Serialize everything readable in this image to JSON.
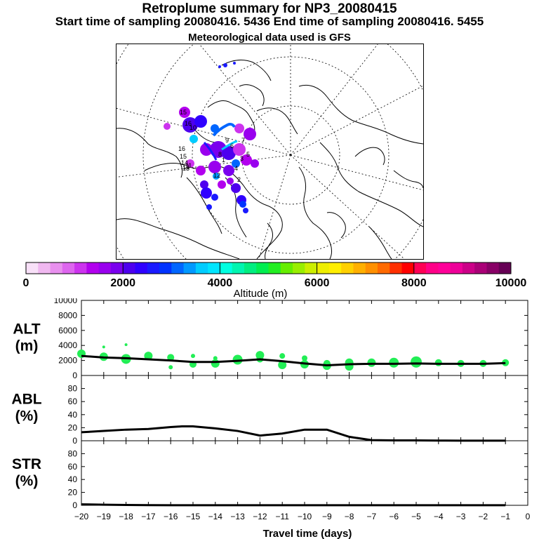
{
  "header": {
    "title": "Retroplume summary for NP3_20080415",
    "subtitle": "Start time of sampling 20080416.  5436     End time of sampling 20080416.  5455",
    "met_label": "Meteorological data used is GFS"
  },
  "colors": {
    "plume_dot": "#22ee55",
    "line": "#000000",
    "colorbar": [
      "#f8e0f8",
      "#f0b8f0",
      "#e890ee",
      "#dd66ee",
      "#cc33ee",
      "#b200ee",
      "#9900ee",
      "#7a00ee",
      "#4d00ee",
      "#2f00ff",
      "#1a1aff",
      "#0033ff",
      "#0066ff",
      "#0099ff",
      "#00ccff",
      "#00e5ff",
      "#00ffe0",
      "#00f5b0",
      "#00ee80",
      "#00ee50",
      "#22ee22",
      "#66ee00",
      "#99ee00",
      "#ccee00",
      "#eeee00",
      "#ffee00",
      "#ffd000",
      "#ffb000",
      "#ff9000",
      "#ff6a00",
      "#ff3000",
      "#ff0000",
      "#ff0055",
      "#ff0088",
      "#ff0099",
      "#ee0099",
      "#cc0088",
      "#aa0077",
      "#880066",
      "#660055"
    ]
  },
  "map": {
    "labels": [
      "15",
      "16",
      "10",
      "16",
      "15",
      "14",
      "13",
      "12",
      "11",
      "1",
      "6",
      "12",
      "7",
      "5",
      "3",
      "9",
      "4",
      "8",
      "2"
    ]
  },
  "colorbar": {
    "label": "Altitude (m)",
    "tick_labels": [
      "0",
      "2000",
      "4000",
      "6000",
      "8000",
      "10000"
    ]
  },
  "chart_data": [
    {
      "type": "scatter",
      "panel": "ALT",
      "ylabel": "ALT\n(m)",
      "ylabel_lines": [
        "ALT",
        "(m)"
      ],
      "ylim": [
        0,
        10000
      ],
      "yticks": [
        0,
        2000,
        4000,
        6000,
        8000,
        10000
      ],
      "xlim": [
        -20,
        0
      ],
      "xticks": [
        -20,
        -19,
        -18,
        -17,
        -16,
        -15,
        -14,
        -13,
        -12,
        -11,
        -10,
        -9,
        -8,
        -7,
        -6,
        -5,
        -4,
        -3,
        -2,
        -1,
        0
      ],
      "mean_line": {
        "x": [
          -20,
          -19,
          -18,
          -17,
          -16,
          -15,
          -14,
          -13,
          -12,
          -11,
          -10,
          -9,
          -8,
          -7,
          -6,
          -5,
          -4,
          -3,
          -2,
          -1
        ],
        "y": [
          2600,
          2400,
          2300,
          2150,
          2000,
          1800,
          1800,
          1950,
          2150,
          1900,
          1600,
          1350,
          1500,
          1550,
          1550,
          1600,
          1550,
          1550,
          1550,
          1650
        ]
      },
      "plume_points": {
        "x": [
          -20,
          -19,
          -19,
          -18,
          -18,
          -17,
          -16,
          -16,
          -15,
          -15,
          -14,
          -14,
          -13,
          -12,
          -12,
          -11,
          -11,
          -10,
          -10,
          -9,
          -9,
          -8,
          -8,
          -7,
          -6,
          -5,
          -4,
          -3,
          -2,
          -1
        ],
        "y": [
          2900,
          2500,
          3800,
          2200,
          4100,
          2600,
          2400,
          1100,
          1500,
          2600,
          1600,
          2300,
          2100,
          2700,
          2200,
          1400,
          2600,
          1500,
          2300,
          1300,
          1600,
          1200,
          1700,
          1700,
          1700,
          1800,
          1700,
          1600,
          1600,
          1700
        ],
        "size": [
          6,
          6,
          2,
          7,
          2,
          6,
          5,
          3,
          5,
          3,
          6,
          3,
          7,
          6,
          5,
          6,
          4,
          6,
          4,
          6,
          5,
          6,
          6,
          6,
          7,
          8,
          5,
          5,
          5,
          5
        ]
      }
    },
    {
      "type": "line",
      "panel": "ABL",
      "ylabel": "ABL\n(%)",
      "ylabel_lines": [
        "ABL",
        "(%)"
      ],
      "ylim": [
        0,
        100
      ],
      "yticks": [
        0,
        20,
        40,
        60,
        80
      ],
      "xlim": [
        -20,
        0
      ],
      "x": [
        -20,
        -19,
        -18,
        -17,
        -16,
        -15.5,
        -15,
        -14,
        -13,
        -12,
        -11,
        -10,
        -9,
        -8,
        -7,
        -6,
        -5,
        -4,
        -3,
        -2,
        -1
      ],
      "y": [
        13,
        15,
        17,
        18,
        21,
        22,
        22,
        19,
        15,
        8,
        11,
        17,
        17,
        6,
        1,
        0.5,
        0.5,
        0.3,
        0.2,
        0.1,
        0.1
      ]
    },
    {
      "type": "line",
      "panel": "STR",
      "ylabel": "STR\n(%)",
      "ylabel_lines": [
        "STR",
        "(%)"
      ],
      "ylim": [
        0,
        100
      ],
      "yticks": [
        0,
        20,
        40,
        60,
        80
      ],
      "xlim": [
        -20,
        0
      ],
      "xticks": [
        -20,
        -19,
        -18,
        -17,
        -16,
        -15,
        -14,
        -13,
        -12,
        -11,
        -10,
        -9,
        -8,
        -7,
        -6,
        -5,
        -4,
        -3,
        -2,
        -1,
        0
      ],
      "xlabel": "Travel time (days)",
      "x": [
        -20,
        -19,
        -18,
        -17,
        -16,
        -15,
        -14,
        -13,
        -12,
        -11,
        -10,
        -9,
        -8,
        -7,
        -6,
        -5,
        -4,
        -3,
        -2,
        -1
      ],
      "y": [
        1.5,
        1,
        0.5,
        0.3,
        0.2,
        0.1,
        0.1,
        0.1,
        0.1,
        0.1,
        0.1,
        0.1,
        0.1,
        0.1,
        0.1,
        0.1,
        0.1,
        0.1,
        0.1,
        0.1
      ]
    }
  ]
}
